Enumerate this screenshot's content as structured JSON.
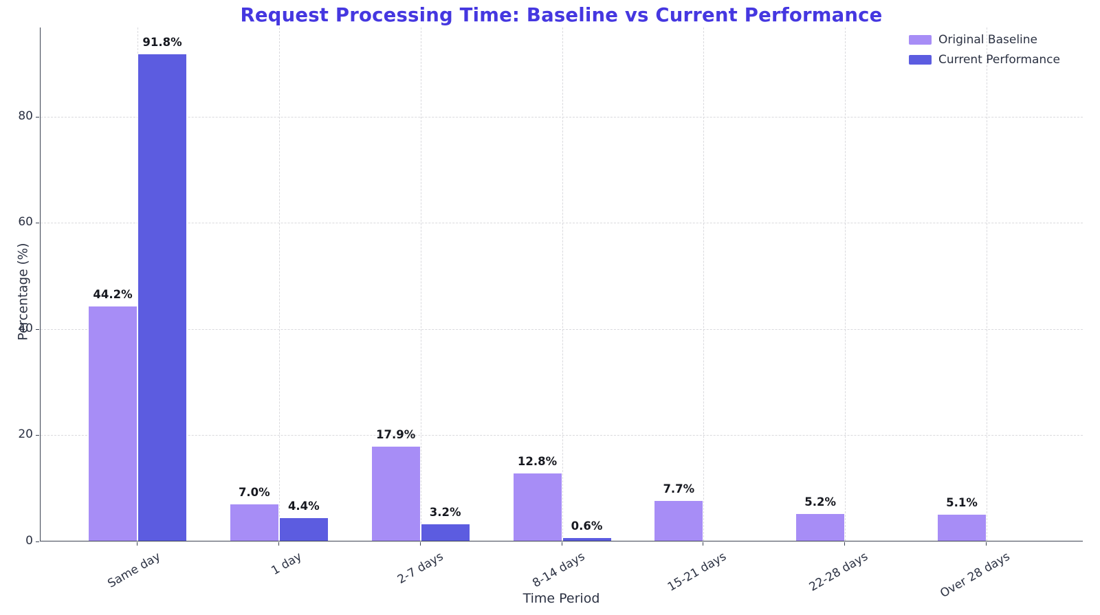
{
  "title": "Request Processing Time: Baseline vs Current Performance",
  "chart_data": {
    "type": "bar",
    "categories": [
      "Same day",
      "1 day",
      "2-7 days",
      "8-14 days",
      "15-21 days",
      "22-28 days",
      "Over 28 days"
    ],
    "series": [
      {
        "name": "Original Baseline",
        "color": "#a78df6",
        "values": [
          44.2,
          7.0,
          17.9,
          12.8,
          7.7,
          5.2,
          5.1
        ],
        "labels": [
          "44.2%",
          "7.0%",
          "17.9%",
          "12.8%",
          "7.7%",
          "5.2%",
          "5.1%"
        ]
      },
      {
        "name": "Current Performance",
        "color": "#5c5ce0",
        "values": [
          91.8,
          4.4,
          3.2,
          0.6,
          0,
          0,
          0
        ],
        "labels": [
          "91.8%",
          "4.4%",
          "3.2%",
          "0.6%",
          null,
          null,
          null
        ]
      }
    ],
    "title": "Request Processing Time: Baseline vs Current Performance",
    "xlabel": "Time Period",
    "ylabel": "Percentage (%)",
    "yticks": [
      0,
      20,
      40,
      60,
      80
    ],
    "ylim": [
      0,
      96.8
    ],
    "grid": "dashed both axes",
    "legend_position": "upper right",
    "bar_value_labels_shown": true,
    "xtick_rotation_deg": 30
  },
  "style": {
    "title_color": "#4537e0",
    "baseline_bar_color": "#a78df6",
    "current_bar_color": "#5c5ce0",
    "grid_color": "#d9d9dd",
    "spine_color": "#3a4150",
    "tick_text_color": "#2b3142",
    "value_label_color": "#16181f",
    "background_color": "#ffffff"
  }
}
